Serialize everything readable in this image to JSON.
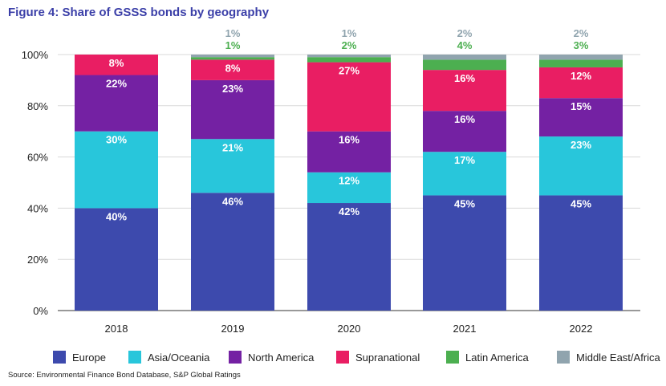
{
  "title": "Figure 4: Share of GSSS bonds by geography",
  "source": "Source: Environmental Finance Bond Database, S&P Global Ratings",
  "chart_data": {
    "type": "bar",
    "stacked": true,
    "categories": [
      "2018",
      "2019",
      "2020",
      "2021",
      "2022"
    ],
    "ylim": [
      0,
      100
    ],
    "yticks": [
      "0%",
      "20%",
      "40%",
      "60%",
      "80%",
      "100%"
    ],
    "yticks_values": [
      0,
      20,
      40,
      60,
      80,
      100
    ],
    "grid": true,
    "legend_position": "bottom",
    "series": [
      {
        "name": "Europe",
        "color": "#3d4aad",
        "values": [
          40,
          46,
          42,
          45,
          45
        ],
        "labels": [
          "40%",
          "46%",
          "42%",
          "45%",
          "45%"
        ]
      },
      {
        "name": "Asia/Oceania",
        "color": "#28c6db",
        "values": [
          30,
          21,
          12,
          17,
          23
        ],
        "labels": [
          "30%",
          "21%",
          "12%",
          "17%",
          "23%"
        ]
      },
      {
        "name": "North America",
        "color": "#7421a3",
        "values": [
          22,
          23,
          16,
          16,
          15
        ],
        "labels": [
          "22%",
          "23%",
          "16%",
          "16%",
          "15%"
        ]
      },
      {
        "name": "Supranational",
        "color": "#e91e63",
        "values": [
          8,
          8,
          27,
          16,
          12
        ],
        "labels": [
          "8%",
          "8%",
          "27%",
          "16%",
          "12%"
        ]
      },
      {
        "name": "Latin America",
        "color": "#4caf50",
        "values": [
          0,
          1,
          2,
          4,
          3
        ],
        "labels": [
          "",
          "1%",
          "2%",
          "4%",
          "3%"
        ]
      },
      {
        "name": "Middle East/Africa",
        "color": "#90a4ae",
        "values": [
          0,
          1,
          1,
          2,
          2
        ],
        "labels": [
          "",
          "1%",
          "1%",
          "2%",
          "2%"
        ]
      }
    ]
  }
}
